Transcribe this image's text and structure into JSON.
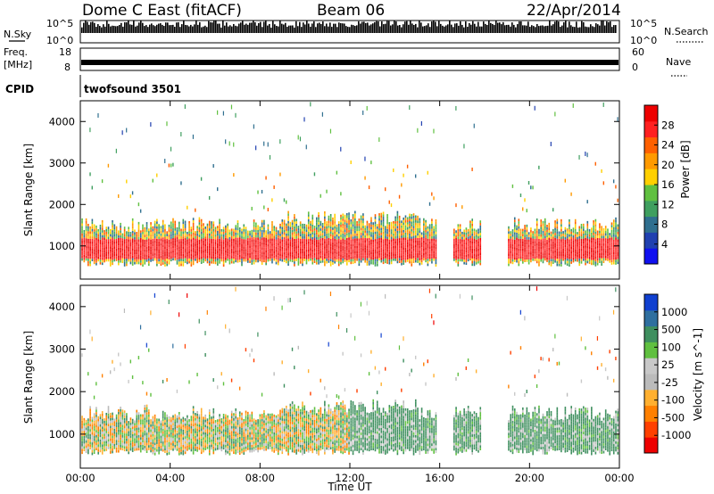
{
  "header": {
    "station": "Dome C East (fitACF)",
    "beam": "Beam 06",
    "date": "22/Apr/2014"
  },
  "strips": {
    "nsky_label": "N.Sky",
    "nsky_top": "10^5",
    "nsky_bottom": "10^0",
    "nsearch_label": "N.Search",
    "nsearch_top": "10^5",
    "nsearch_bottom": "10^0",
    "freq_label_1": "Freq.",
    "freq_label_2": "[MHz]",
    "freq_top": "18",
    "freq_bottom": "8",
    "nave_label": "Nave",
    "nave_top": "60",
    "nave_bottom": "0",
    "cpid_label": "CPID",
    "cpid_value": "twofsound 3501"
  },
  "colors": {
    "power": [
      "#1010f0",
      "#2040b0",
      "#2f6f8f",
      "#3f9f5f",
      "#60c040",
      "#ffd000",
      "#ff9a00",
      "#ff6000",
      "#ff2020",
      "#ee0000"
    ],
    "velocity": [
      "#ee0000",
      "#ff4000",
      "#ff8000",
      "#ffb030",
      "#bbbbbb",
      "#c8c8c8",
      "#60c040",
      "#3f8f5f",
      "#2f6f9f",
      "#1040d0"
    ]
  },
  "chart_data": [
    {
      "type": "heatmap",
      "panel": "power",
      "ylabel": "Slant Range [km]",
      "y_ticks": [
        "1000",
        "2000",
        "3000",
        "4000"
      ],
      "ylim": [
        200,
        4500
      ],
      "colorbar_label": "Power [dB]",
      "colorbar_ticks": [
        "4",
        "8",
        "12",
        "16",
        "20",
        "24",
        "28"
      ],
      "clim": [
        0,
        30
      ]
    },
    {
      "type": "heatmap",
      "panel": "velocity",
      "ylabel": "Slant Range [km]",
      "y_ticks": [
        "1000",
        "2000",
        "3000",
        "4000"
      ],
      "ylim": [
        200,
        4500
      ],
      "colorbar_label": "Velocity [m s^-1]",
      "colorbar_ticks": [
        "-1000",
        "-500",
        "-100",
        "-25",
        "25",
        "100",
        "500",
        "1000"
      ]
    }
  ],
  "x_axis": {
    "label": "Time UT",
    "ticks": [
      "00:00",
      "04:00",
      "08:00",
      "12:00",
      "16:00",
      "20:00",
      "00:00"
    ],
    "xlim": [
      0,
      24
    ]
  }
}
